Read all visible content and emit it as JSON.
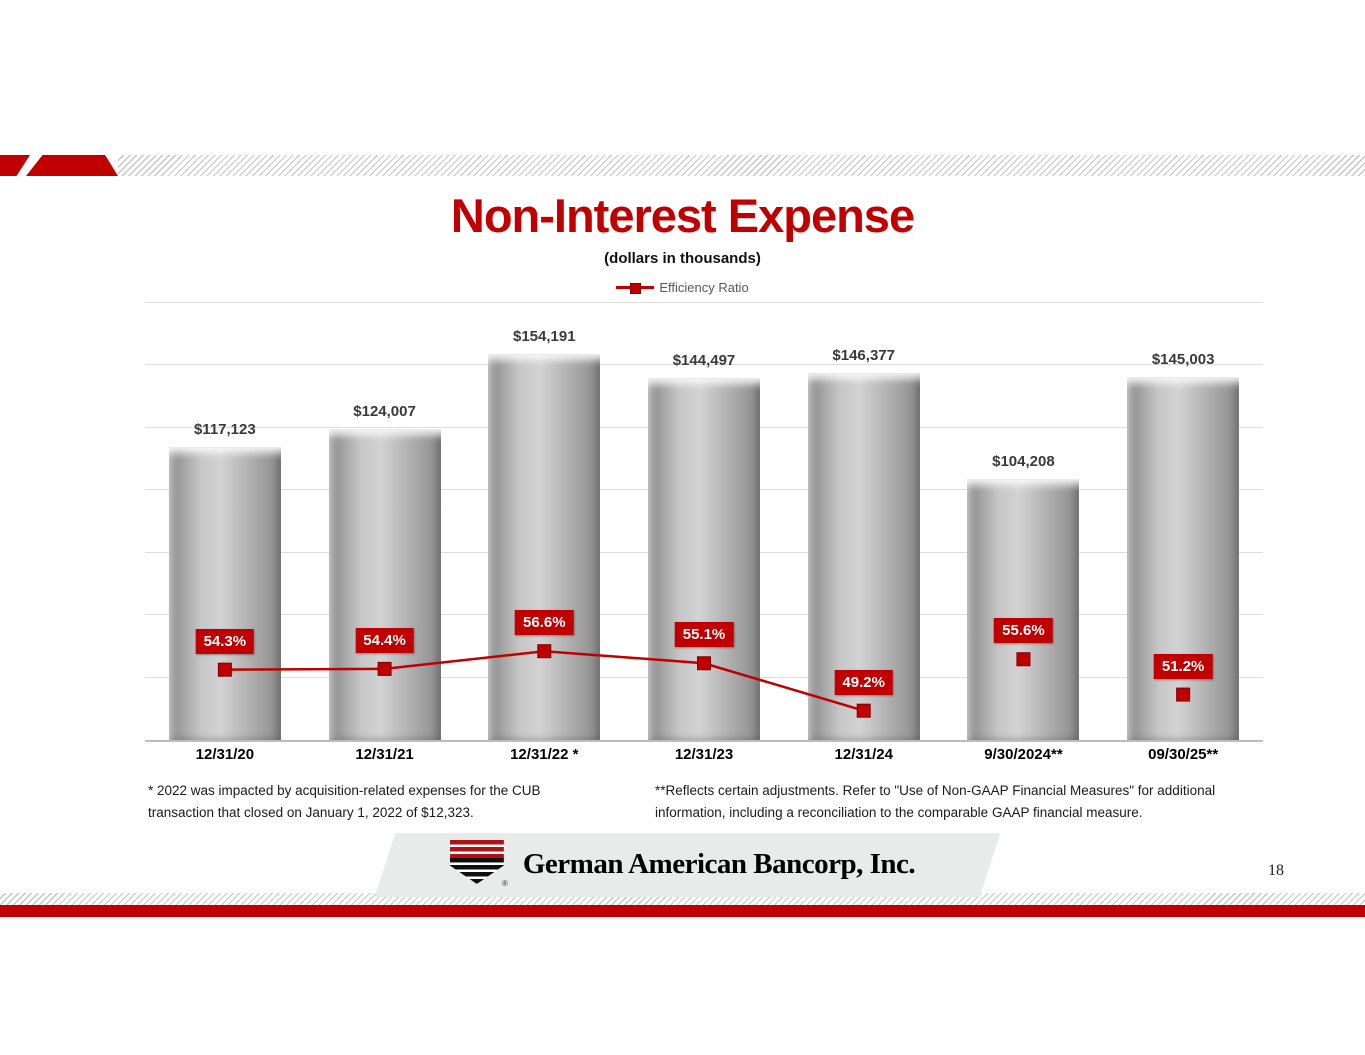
{
  "page": {
    "number": "18"
  },
  "header": {
    "title": "Non-Interest Expense",
    "subtitle": "(dollars in thousands)"
  },
  "legend": {
    "label": "Efficiency Ratio"
  },
  "chart_data": {
    "type": "bar",
    "title": "Non-Interest Expense",
    "subtitle": "(dollars in thousands)",
    "categories": [
      "12/31/20",
      "12/31/21",
      "12/31/22 *",
      "12/31/23",
      "12/31/24",
      "9/30/2024**",
      "09/30/25**"
    ],
    "series": [
      {
        "name": "Non-Interest Expense",
        "type": "bar",
        "values": [
          117123,
          124007,
          154191,
          144497,
          146377,
          104208,
          145003
        ],
        "data_labels": [
          "$117,123",
          "$124,007",
          "$154,191",
          "$144,497",
          "$146,377",
          "$104,208",
          "$145,003"
        ]
      },
      {
        "name": "Efficiency Ratio",
        "type": "line",
        "values": [
          54.3,
          54.4,
          56.6,
          55.1,
          49.2,
          55.6,
          51.2
        ],
        "data_labels": [
          "54.3%",
          "54.4%",
          "56.6%",
          "55.1%",
          "49.2%",
          "55.6%",
          "51.2%"
        ],
        "connected_points": 5
      }
    ],
    "xlabel": "",
    "ylabel": "",
    "ylim": [
      0,
      185000
    ],
    "gridline_step": 25000,
    "secondary_ylim": [
      45.3,
      102.8
    ],
    "grid": true,
    "legend_position": "top"
  },
  "footnotes": {
    "left": "* 2022 was impacted by acquisition-related expenses for the CUB transaction that closed on January 1, 2022 of $12,323.",
    "right": "**Reflects certain adjustments.  Refer to \"Use of Non-GAAP Financial Measures\" for additional information, including a reconciliation to the comparable GAAP financial measure."
  },
  "logo": {
    "company": "German American Bancorp, Inc.",
    "registered": "®"
  },
  "colors": {
    "accent_red": "#C00000",
    "marker_stroke": "#7F0000",
    "bar_gray": "#ABABAB",
    "hatch_gray": "#C7C7C7"
  }
}
